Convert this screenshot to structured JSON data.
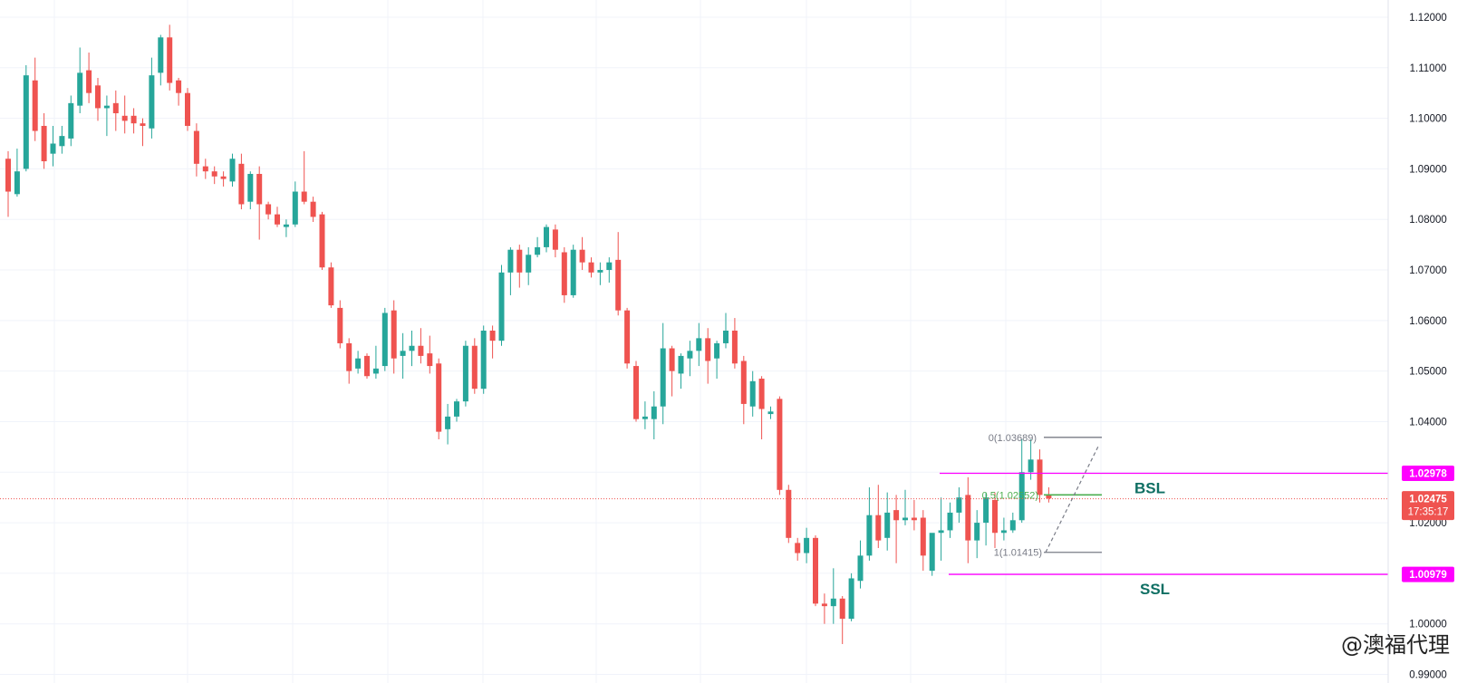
{
  "chart_data": {
    "type": "candlestick",
    "symbol_header_partial": "",
    "y_axis": {
      "range": [
        0.9883,
        1.1234
      ],
      "ticks": [
        "1.12000",
        "1.11000",
        "1.10000",
        "1.09000",
        "1.08000",
        "1.07000",
        "1.06000",
        "1.05000",
        "1.04000",
        "1.03000",
        "1.02000",
        "1.01000",
        "1.00000",
        "0.99000"
      ],
      "tick_values": [
        1.12,
        1.11,
        1.1,
        1.09,
        1.08,
        1.07,
        1.06,
        1.05,
        1.04,
        1.03,
        1.02,
        1.01,
        1.0,
        0.99
      ]
    },
    "colors": {
      "up": "#26a69a",
      "down": "#ef5350",
      "magenta": "#ff00ff",
      "fib_mid": "#4caf50",
      "fib_range": "#787b86",
      "price_tag": "#ef5350",
      "level_text": "#0f6f63"
    },
    "candles": [
      [
        1.092,
        1.0935,
        1.0805,
        1.0855
      ],
      [
        1.085,
        1.094,
        1.0845,
        1.0895
      ],
      [
        1.09,
        1.1105,
        1.0895,
        1.1085
      ],
      [
        1.1075,
        1.112,
        1.0955,
        1.0975
      ],
      [
        1.0985,
        1.101,
        1.09,
        1.0915
      ],
      [
        1.093,
        1.0985,
        1.0905,
        1.095
      ],
      [
        1.0945,
        1.0985,
        1.093,
        1.0965
      ],
      [
        1.096,
        1.1045,
        1.0945,
        1.103
      ],
      [
        1.1025,
        1.114,
        1.101,
        1.109
      ],
      [
        1.1095,
        1.113,
        1.103,
        1.105
      ],
      [
        1.1065,
        1.108,
        1.0995,
        1.102
      ],
      [
        1.102,
        1.1045,
        1.0965,
        1.1025
      ],
      [
        1.103,
        1.1055,
        1.0975,
        1.101
      ],
      [
        1.1005,
        1.1045,
        1.097,
        1.0995
      ],
      [
        1.1005,
        1.102,
        1.097,
        1.099
      ],
      [
        1.099,
        1.1,
        1.0945,
        1.0985
      ],
      [
        1.098,
        1.112,
        1.096,
        1.1085
      ],
      [
        1.109,
        1.1165,
        1.1065,
        1.116
      ],
      [
        1.116,
        1.1185,
        1.1055,
        1.107
      ],
      [
        1.1075,
        1.108,
        1.1025,
        1.105
      ],
      [
        1.105,
        1.106,
        1.0975,
        1.0985
      ],
      [
        1.0975,
        1.099,
        1.0885,
        1.091
      ],
      [
        1.0905,
        1.092,
        1.088,
        1.0895
      ],
      [
        1.0895,
        1.0905,
        1.087,
        1.0885
      ],
      [
        1.0885,
        1.0895,
        1.0865,
        1.088
      ],
      [
        1.0875,
        1.093,
        1.0865,
        1.092
      ],
      [
        1.091,
        1.093,
        1.082,
        1.083
      ],
      [
        1.0835,
        1.0895,
        1.082,
        1.089
      ],
      [
        1.089,
        1.0905,
        1.076,
        1.083
      ],
      [
        1.083,
        1.0835,
        1.08,
        1.081
      ],
      [
        1.081,
        1.0825,
        1.0785,
        1.079
      ],
      [
        1.0785,
        1.08,
        1.0765,
        1.079
      ],
      [
        1.079,
        1.0875,
        1.0785,
        1.0855
      ],
      [
        1.0855,
        1.0935,
        1.083,
        1.0835
      ],
      [
        1.0835,
        1.0845,
        1.0795,
        1.0805
      ],
      [
        1.081,
        1.0815,
        1.07,
        1.0705
      ],
      [
        1.0705,
        1.0715,
        1.0625,
        1.063
      ],
      [
        1.0625,
        1.064,
        1.0545,
        1.0555
      ],
      [
        1.0555,
        1.0565,
        1.0475,
        1.05
      ],
      [
        1.0505,
        1.054,
        1.0495,
        1.0525
      ],
      [
        1.053,
        1.0535,
        1.0485,
        1.049
      ],
      [
        1.0495,
        1.055,
        1.0485,
        1.0505
      ],
      [
        1.051,
        1.0625,
        1.05,
        1.0615
      ],
      [
        1.062,
        1.064,
        1.0495,
        1.0525
      ],
      [
        1.053,
        1.0575,
        1.0485,
        1.054
      ],
      [
        1.054,
        1.058,
        1.051,
        1.055
      ],
      [
        1.055,
        1.0585,
        1.0515,
        1.053
      ],
      [
        1.0535,
        1.057,
        1.0495,
        1.051
      ],
      [
        1.0515,
        1.0525,
        1.0365,
        1.038
      ],
      [
        1.0385,
        1.0435,
        1.0355,
        1.041
      ],
      [
        1.041,
        1.0445,
        1.04,
        1.044
      ],
      [
        1.044,
        1.056,
        1.043,
        1.055
      ],
      [
        1.055,
        1.0565,
        1.0455,
        1.0465
      ],
      [
        1.0465,
        1.059,
        1.0455,
        1.058
      ],
      [
        1.058,
        1.059,
        1.0525,
        1.056
      ],
      [
        1.056,
        1.071,
        1.055,
        1.0695
      ],
      [
        1.0695,
        1.0745,
        1.065,
        1.074
      ],
      [
        1.074,
        1.075,
        1.0665,
        1.0695
      ],
      [
        1.0695,
        1.0745,
        1.067,
        1.073
      ],
      [
        1.073,
        1.0765,
        1.0725,
        1.0745
      ],
      [
        1.0745,
        1.079,
        1.0735,
        1.0785
      ],
      [
        1.078,
        1.079,
        1.0725,
        1.074
      ],
      [
        1.0735,
        1.0745,
        1.0635,
        1.065
      ],
      [
        1.065,
        1.075,
        1.0645,
        1.074
      ],
      [
        1.074,
        1.0765,
        1.07,
        1.0715
      ],
      [
        1.0715,
        1.0725,
        1.0685,
        1.0695
      ],
      [
        1.0695,
        1.0715,
        1.067,
        1.07
      ],
      [
        1.07,
        1.0725,
        1.0675,
        1.0715
      ],
      [
        1.072,
        1.0775,
        1.061,
        1.062
      ],
      [
        1.062,
        1.0625,
        1.0505,
        1.0515
      ],
      [
        1.051,
        1.052,
        1.04,
        1.0405
      ],
      [
        1.0405,
        1.044,
        1.0385,
        1.041
      ],
      [
        1.0405,
        1.046,
        1.0365,
        1.043
      ],
      [
        1.043,
        1.0595,
        1.0395,
        1.0545
      ],
      [
        1.0545,
        1.055,
        1.045,
        1.05
      ],
      [
        1.0495,
        1.0535,
        1.0465,
        1.053
      ],
      [
        1.0525,
        1.056,
        1.049,
        1.054
      ],
      [
        1.054,
        1.0595,
        1.051,
        1.0565
      ],
      [
        1.0565,
        1.0585,
        1.0475,
        1.052
      ],
      [
        1.0525,
        1.056,
        1.0485,
        1.0555
      ],
      [
        1.0555,
        1.0615,
        1.0545,
        1.058
      ],
      [
        1.058,
        1.0605,
        1.0505,
        1.0515
      ],
      [
        1.052,
        1.053,
        1.0395,
        1.0435
      ],
      [
        1.043,
        1.05,
        1.041,
        1.048
      ],
      [
        1.0485,
        1.049,
        1.0365,
        1.0425
      ],
      [
        1.0415,
        1.043,
        1.0405,
        1.042
      ],
      [
        1.0445,
        1.045,
        1.0255,
        1.0265
      ],
      [
        1.0265,
        1.0275,
        1.016,
        1.017
      ],
      [
        1.016,
        1.017,
        1.0125,
        1.014
      ],
      [
        1.014,
        1.019,
        1.012,
        1.017
      ],
      [
        1.017,
        1.0175,
        1.0035,
        1.004
      ],
      [
        1.004,
        1.006,
        1.0,
        1.0035
      ],
      [
        1.0035,
        1.011,
        1.0,
        1.005
      ],
      [
        1.005,
        1.0055,
        0.996,
        1.001
      ],
      [
        1.001,
        1.01,
        1.0005,
        1.009
      ],
      [
        1.0085,
        1.0165,
        1.007,
        1.0135
      ],
      [
        1.0135,
        1.027,
        1.0125,
        1.0215
      ],
      [
        1.0215,
        1.0275,
        1.015,
        1.0165
      ],
      [
        1.017,
        1.026,
        1.0145,
        1.022
      ],
      [
        1.0225,
        1.0255,
        1.012,
        1.0205
      ],
      [
        1.0205,
        1.0265,
        1.0195,
        1.021
      ],
      [
        1.021,
        1.0245,
        1.0185,
        1.0205
      ],
      [
        1.021,
        1.0225,
        1.0105,
        1.0135
      ],
      [
        1.0105,
        1.017,
        1.0095,
        1.018
      ],
      [
        1.018,
        1.025,
        1.0125,
        1.0185
      ],
      [
        1.0185,
        1.024,
        1.017,
        1.022
      ],
      [
        1.022,
        1.027,
        1.02,
        1.025
      ],
      [
        1.0255,
        1.029,
        1.012,
        1.0165
      ],
      [
        1.0165,
        1.0225,
        1.013,
        1.02
      ],
      [
        1.02,
        1.026,
        1.0155,
        1.025
      ],
      [
        1.0245,
        1.026,
        1.015,
        1.018
      ],
      [
        1.018,
        1.021,
        1.0165,
        1.0185
      ],
      [
        1.0185,
        1.022,
        1.018,
        1.0205
      ],
      [
        1.0205,
        1.0365,
        1.02,
        1.03
      ],
      [
        1.03,
        1.0365,
        1.0285,
        1.0325
      ],
      [
        1.0325,
        1.0345,
        1.024,
        1.0255
      ],
      [
        1.0255,
        1.027,
        1.024,
        1.0248
      ]
    ],
    "levels": {
      "bsl": {
        "price": 1.02978,
        "label": "BSL",
        "tag": "1.02978"
      },
      "ssl": {
        "price": 1.00979,
        "label": "SSL",
        "tag": "1.00979"
      }
    },
    "fib": {
      "top": {
        "price": 1.03689,
        "label": "0(1.03689)"
      },
      "mid": {
        "price": 1.02552,
        "label": "0.5(1.02552)"
      },
      "bottom": {
        "price": 1.01415,
        "label": "1(1.01415)"
      }
    },
    "current_price": {
      "price": 1.02475,
      "label": "1.02475",
      "countdown": "17:35:17"
    }
  },
  "watermark": {
    "text": "@澳福代理"
  }
}
